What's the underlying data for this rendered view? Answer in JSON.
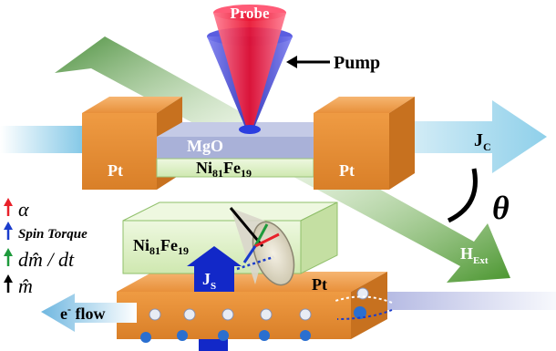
{
  "labels": {
    "probe": "Probe",
    "pump": "Pump",
    "mgo": "MgO",
    "pt_left": "Pt",
    "pt_right": "Pt",
    "pt_bottom": "Pt",
    "nife_top": "Ni",
    "nife_top_sub1": "81",
    "nife_top_mid": "Fe",
    "nife_top_sub2": "19",
    "nife_bottom": "Ni",
    "nife_bottom_sub1": "81",
    "nife_bottom_mid": "Fe",
    "nife_bottom_sub2": "19",
    "jc": "J",
    "jc_sub": "C",
    "js": "J",
    "js_sub": "S",
    "hext": "H",
    "hext_sub": "Ext",
    "theta": "θ",
    "electron_flow_e": "e",
    "electron_flow_sup": "-",
    "electron_flow_rest": " flow"
  },
  "legend": [
    {
      "arrow": "↑",
      "text": "α",
      "color": "#e8212a"
    },
    {
      "arrow": "↑",
      "text": "Spin Torque",
      "color": "#1a3ccc"
    },
    {
      "arrow": "↑",
      "text": "dm̂ / dt",
      "color": "#1e9a3c"
    },
    {
      "arrow": "↑",
      "text": "m̂",
      "color": "#000000"
    }
  ],
  "colors": {
    "pt": "#f0a14c",
    "nife": "#d9efbe",
    "mgo": "#aab3d6",
    "probe": "#ee2040",
    "pump": "#3a3ccc",
    "hext_arrow": "#4e9a2c",
    "jc_arrow": "#a6d8ec"
  }
}
